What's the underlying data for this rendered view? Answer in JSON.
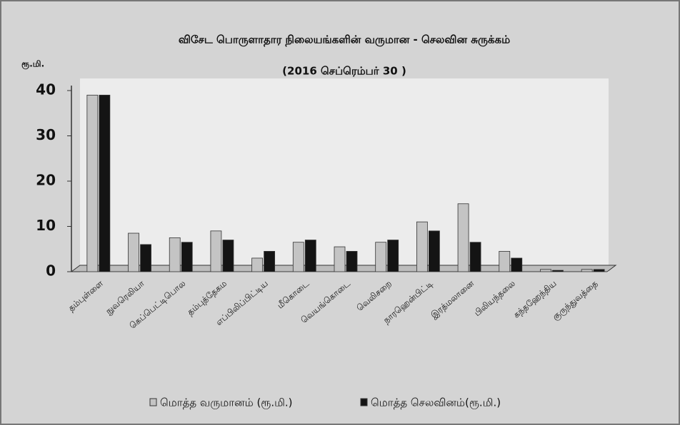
{
  "chart_data": {
    "type": "bar",
    "title": "விசேட பொருளாதார நிலையங்களின் வருமான - செலவின சுருக்கம்",
    "subtitle": "(2016 செப்ரெம்பர் 30 )",
    "y_label": "ரூ.மி.",
    "categories": [
      "தம்புள்ளை",
      "நுவரெலியா",
      "கெப்பெட்டிபொல",
      "தம்புத்தேகம",
      "எப்பிலிப்பிட்டிய",
      "மீகொடை",
      "வெயங்கொடை",
      "வெலிசறை",
      "நாரஹென்பிட்டி",
      "இரத்மலானை",
      "பிலியந்தலை",
      "கந்தஹேந்திய",
      "குருந்துவத்தை"
    ],
    "series": [
      {
        "name": "மொத்த வருமானம் (ரூ.மி.)",
        "color": "#c4c4c4",
        "values": [
          39,
          8.5,
          7.5,
          9,
          3,
          6.5,
          5.5,
          6.5,
          11,
          15,
          4.5,
          0.5,
          0.5
        ]
      },
      {
        "name": "மொத்த செலவினம்(ரூ.மி.)",
        "color": "#141414",
        "values": [
          39,
          6,
          6.5,
          7,
          4.5,
          7,
          4.5,
          7,
          9,
          6.5,
          3,
          0.3,
          0.5
        ]
      }
    ],
    "ylim": [
      0,
      40
    ],
    "yticks": [
      0,
      10,
      20,
      30,
      40
    ],
    "grid": false
  }
}
